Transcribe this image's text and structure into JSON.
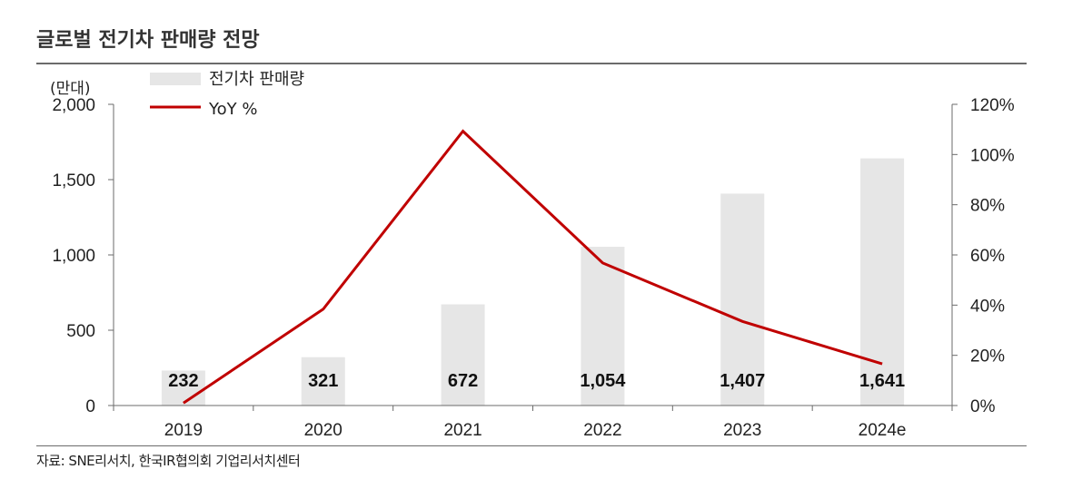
{
  "title": "글로벌 전기차 판매량 전망",
  "source": "자료: SNE리서치, 한국IR협의회 기업리서치센터",
  "colors": {
    "bar": "#e6e6e6",
    "line": "#c00000",
    "axis": "#6b6b6b"
  },
  "chart_data": {
    "type": "bar+line",
    "categories": [
      "2019",
      "2020",
      "2021",
      "2022",
      "2023",
      "2024e"
    ],
    "series": [
      {
        "name": "전기차 판매량",
        "type": "bar",
        "axis": "left",
        "values": [
          232,
          321,
          672,
          1054,
          1407,
          1641
        ],
        "labels": [
          "232",
          "321",
          "672",
          "1,054",
          "1,407",
          "1,641"
        ]
      },
      {
        "name": "YoY %",
        "type": "line",
        "axis": "right",
        "values": [
          1,
          38.4,
          109.3,
          56.8,
          33.5,
          16.6
        ]
      }
    ],
    "left_axis": {
      "unit": "(만대)",
      "ylim": [
        0,
        2000
      ],
      "ticks": [
        0,
        500,
        1000,
        1500,
        2000
      ],
      "tick_labels": [
        "0",
        "500",
        "1,000",
        "1,500",
        "2,000"
      ]
    },
    "right_axis": {
      "ylim": [
        0,
        120
      ],
      "ticks": [
        0,
        20,
        40,
        60,
        80,
        100,
        120
      ],
      "tick_labels": [
        "0%",
        "20%",
        "40%",
        "60%",
        "80%",
        "100%",
        "120%"
      ]
    },
    "legend_position": "top-left",
    "grid": false
  }
}
